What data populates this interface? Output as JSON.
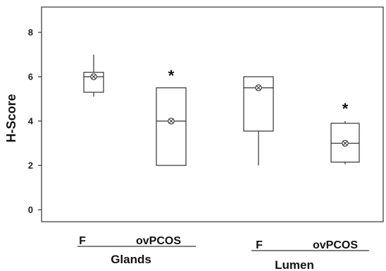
{
  "chart_data": {
    "type": "box",
    "ylabel": "H-Score",
    "ylim": [
      -0.5,
      9.2
    ],
    "yticks": [
      0,
      2,
      4,
      6,
      8
    ],
    "groups": [
      {
        "label": "Glands",
        "categories": [
          "F",
          "ovPCOS"
        ]
      },
      {
        "label": "Lumen",
        "categories": [
          "F",
          "ovPCOS"
        ]
      }
    ],
    "boxes": [
      {
        "group": "Glands",
        "category": "F",
        "whisker_low": 5.1,
        "q1": 5.3,
        "median": 6.0,
        "q3": 6.2,
        "whisker_high": 7.0,
        "mean": 6.0,
        "significant": false
      },
      {
        "group": "Glands",
        "category": "ovPCOS",
        "whisker_low": 2.0,
        "q1": 2.0,
        "median": 4.0,
        "q3": 5.5,
        "whisker_high": 5.5,
        "mean": 4.0,
        "significant": true
      },
      {
        "group": "Lumen",
        "category": "F",
        "whisker_low": 2.0,
        "q1": 3.55,
        "median": 5.5,
        "q3": 6.0,
        "whisker_high": 6.0,
        "mean": 5.5,
        "significant": false
      },
      {
        "group": "Lumen",
        "category": "ovPCOS",
        "whisker_low": 2.05,
        "q1": 2.15,
        "median": 3.0,
        "q3": 3.9,
        "whisker_high": 4.0,
        "mean": 3.0,
        "significant": true
      }
    ],
    "significance_marker": "*",
    "grid": false,
    "legend": "none"
  }
}
